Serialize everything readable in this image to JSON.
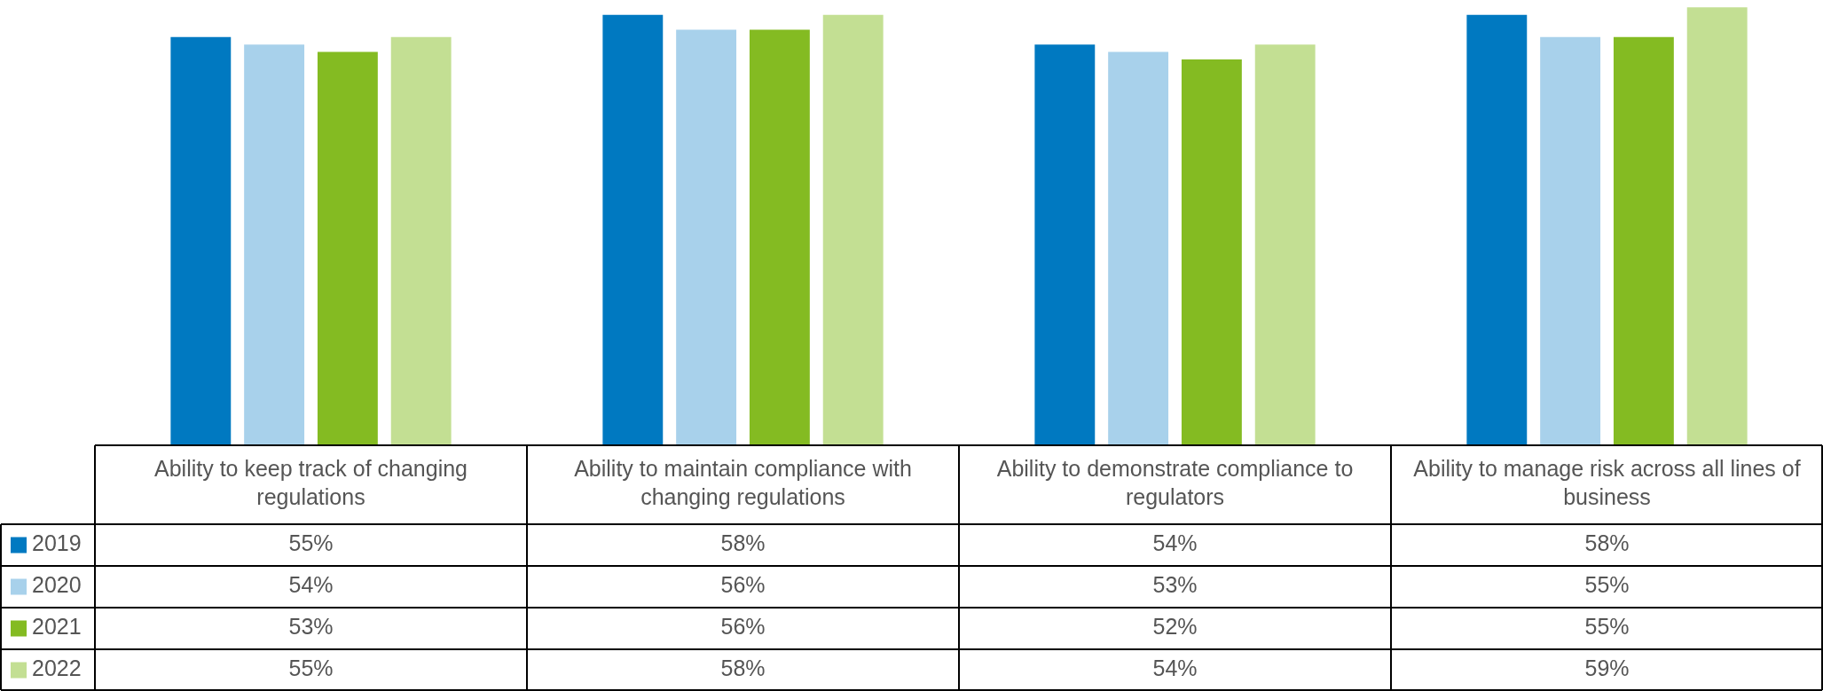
{
  "chart_data": {
    "type": "bar",
    "categories": [
      "Ability to keep track of changing regulations",
      "Ability to maintain compliance with changing regulations",
      "Ability to demonstrate compliance to regulators",
      "Ability to manage risk across all lines of business"
    ],
    "series": [
      {
        "name": "2019",
        "color": "#0079c1",
        "values": [
          55,
          58,
          54,
          58
        ],
        "value_labels": [
          "55%",
          "58%",
          "54%",
          "58%"
        ]
      },
      {
        "name": "2020",
        "color": "#a8d1eb",
        "values": [
          54,
          56,
          53,
          55
        ],
        "value_labels": [
          "54%",
          "56%",
          "53%",
          "55%"
        ]
      },
      {
        "name": "2021",
        "color": "#84bb22",
        "values": [
          53,
          56,
          52,
          55
        ],
        "value_labels": [
          "53%",
          "56%",
          "52%",
          "55%"
        ]
      },
      {
        "name": "2022",
        "color": "#c3df93",
        "values": [
          55,
          58,
          54,
          59
        ],
        "value_labels": [
          "55%",
          "58%",
          "54%",
          "59%"
        ]
      }
    ],
    "tick_labels": "x",
    "legend": "bottom left",
    "grid": false
  }
}
